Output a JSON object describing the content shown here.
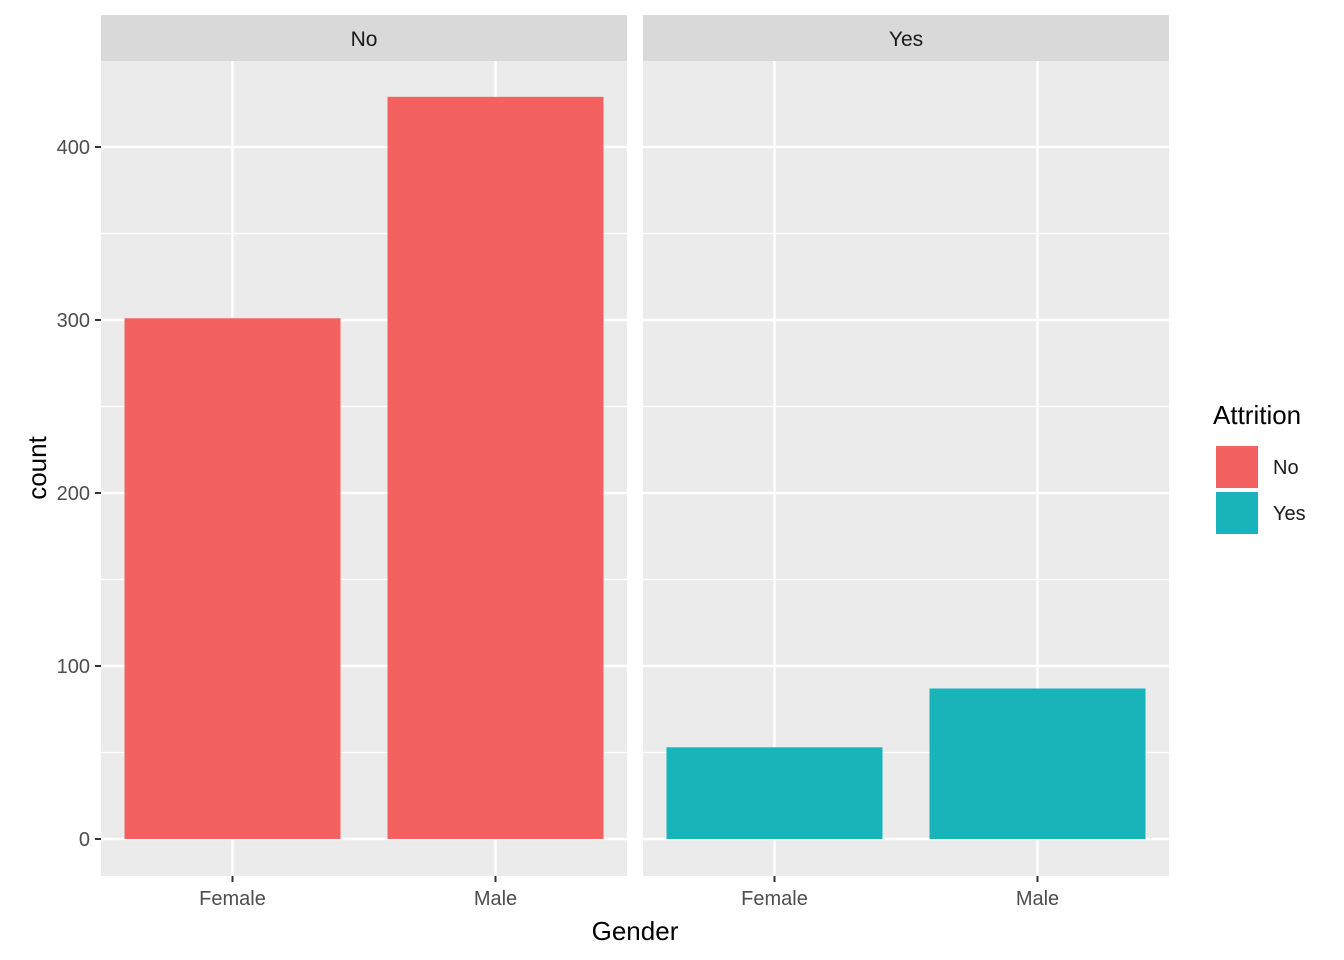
{
  "chart_data": {
    "type": "bar",
    "facet_variable": "Attrition",
    "facets": [
      "No",
      "Yes"
    ],
    "categories": [
      "Female",
      "Male"
    ],
    "series": [
      {
        "name": "No",
        "facet": "No",
        "color": "#F36160",
        "values": [
          301,
          429
        ]
      },
      {
        "name": "Yes",
        "facet": "Yes",
        "color": "#19B4B9",
        "values": [
          53,
          87
        ]
      }
    ],
    "xlabel": "Gender",
    "ylabel": "count",
    "ylim": [
      -20,
      450
    ],
    "yticks": [
      0,
      100,
      200,
      300,
      400
    ],
    "grid": true,
    "legend": {
      "title": "Attrition",
      "position": "right",
      "entries": [
        "No",
        "Yes"
      ]
    }
  }
}
